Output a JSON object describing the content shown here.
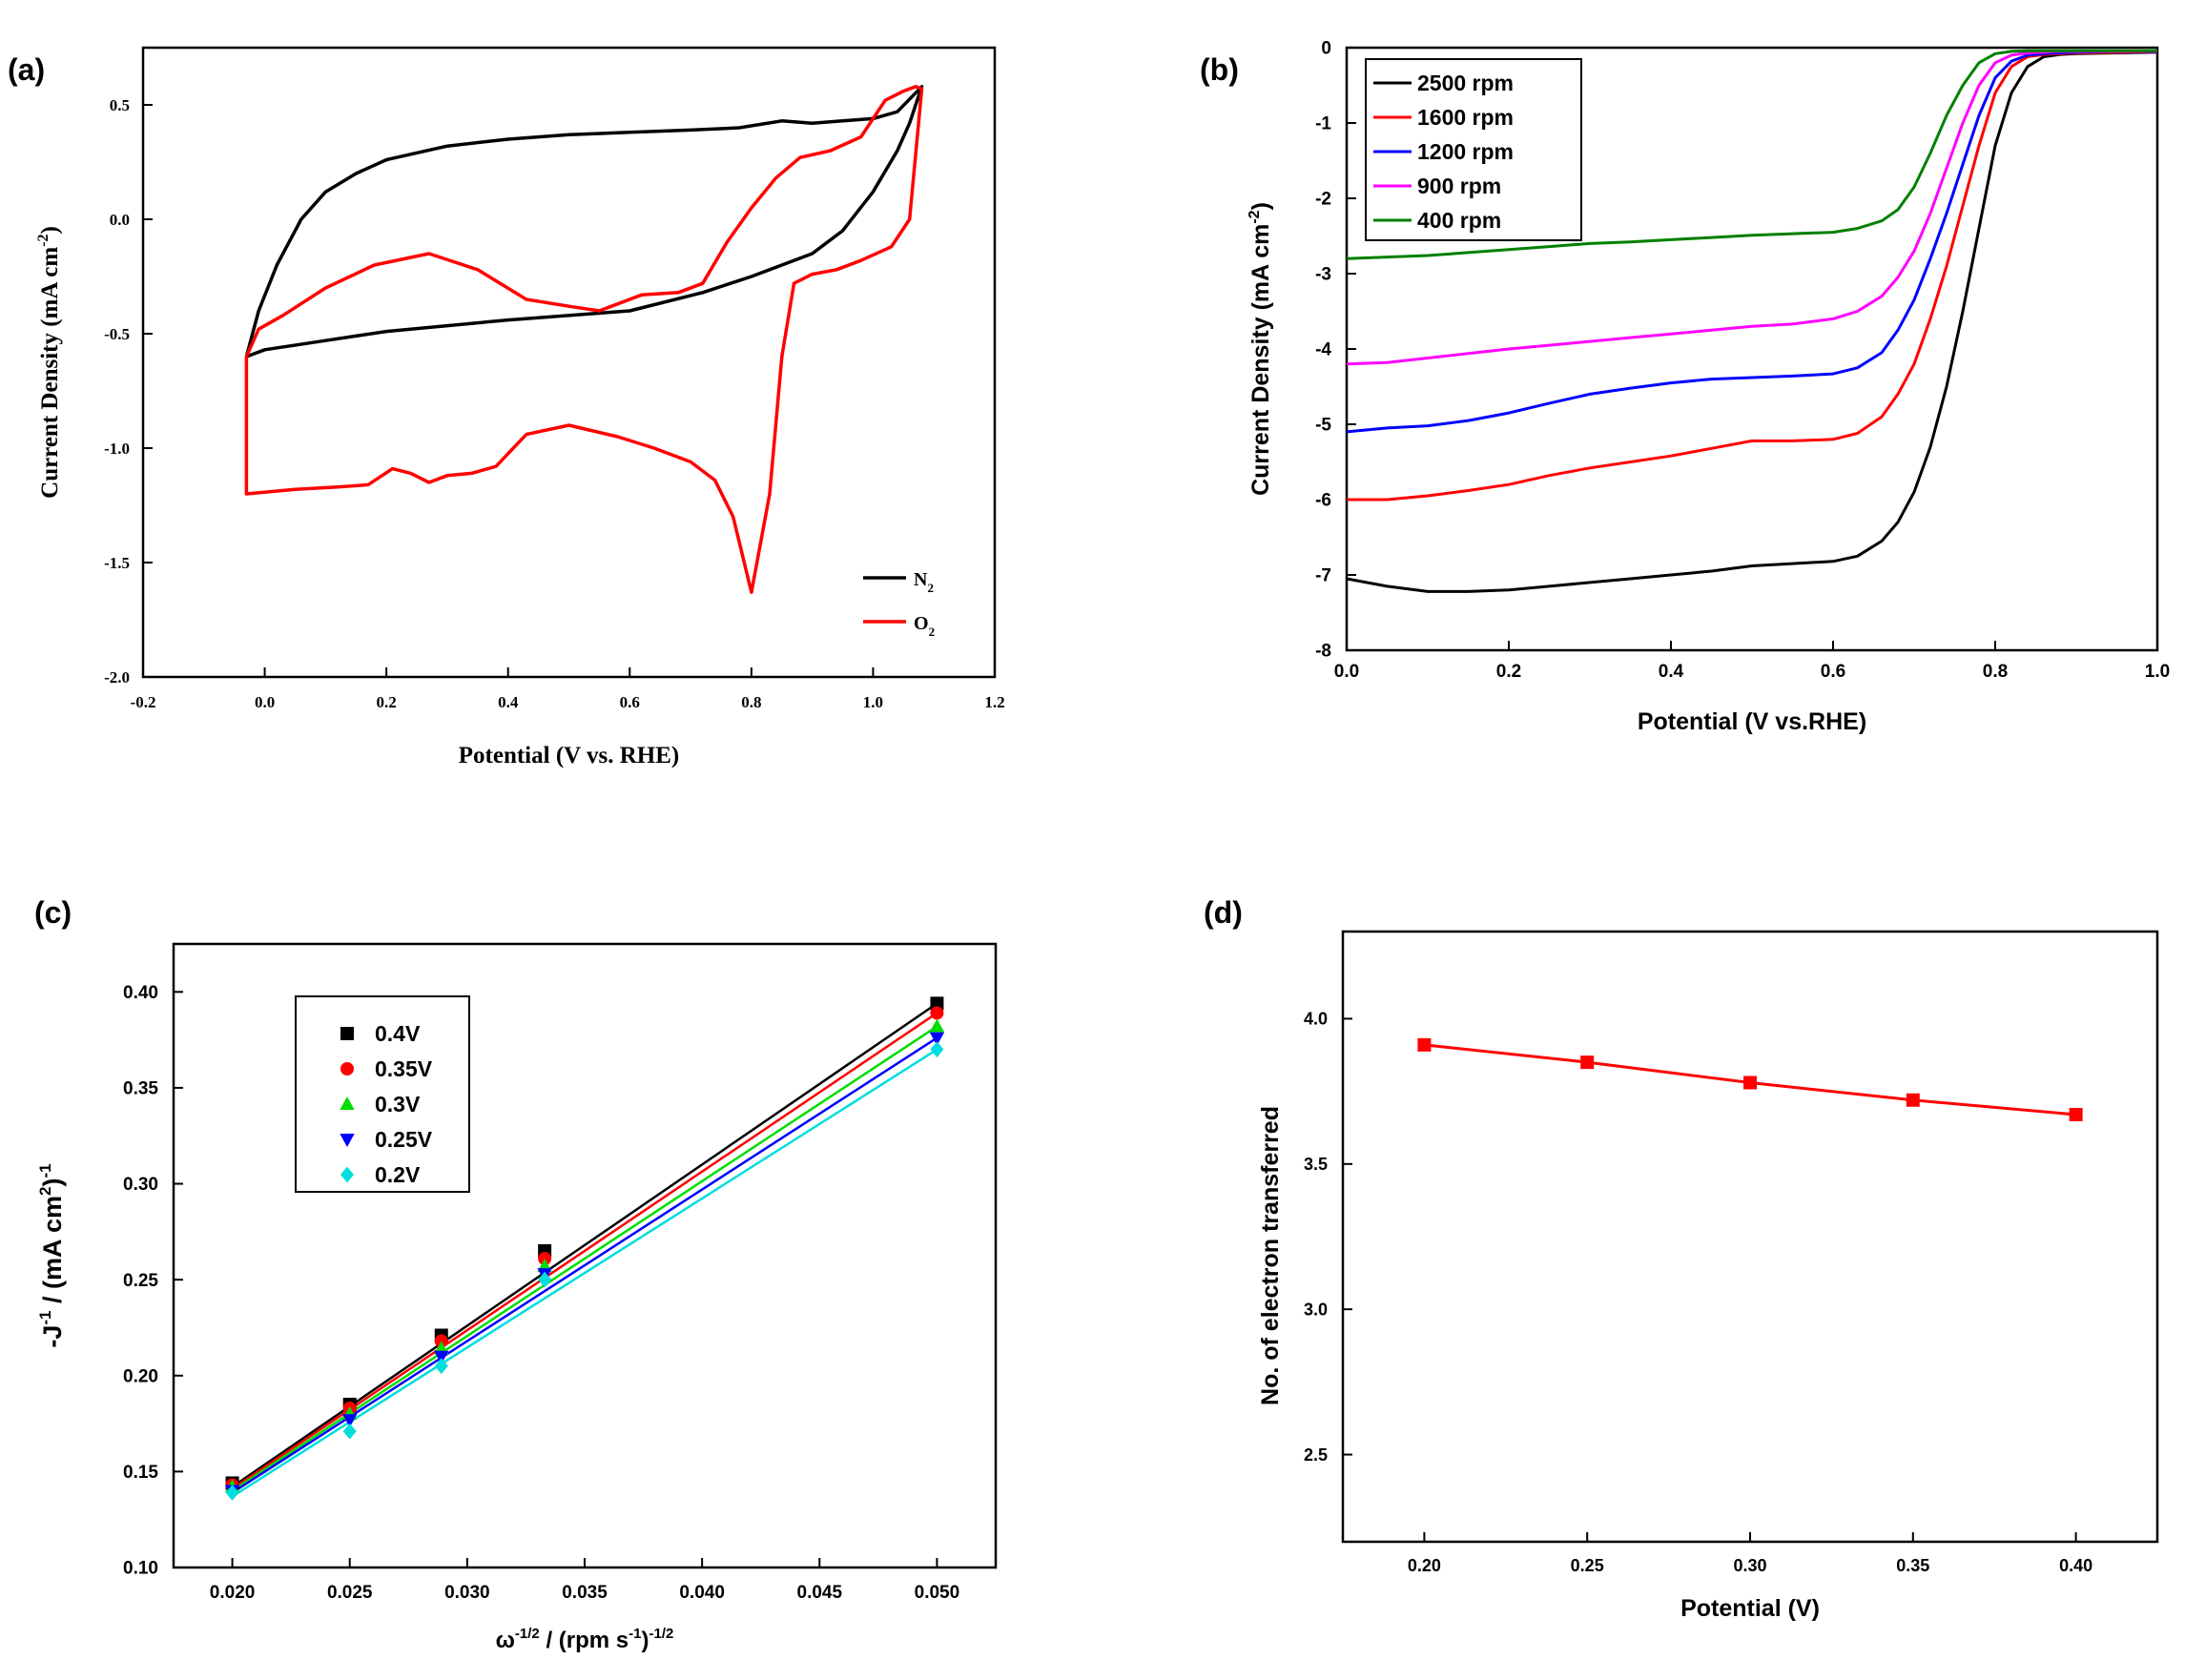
{
  "colors": {
    "black": "#000000",
    "red": "#ff0000",
    "blue": "#0000ff",
    "magenta": "#ff00ff",
    "green": "#008000",
    "lime": "#00dd00",
    "cyan": "#00dddd"
  },
  "chart_data": [
    {
      "id": "a",
      "panel_label": "(a)",
      "type": "line",
      "title": "",
      "xlabel": "Potential (V vs. RHE)",
      "ylabel": "Current Density (mA cm-2)",
      "ylabel_main": "Current Density (mA cm",
      "ylabel_sup": "-2",
      "ylabel_end": ")",
      "xlim": [
        -0.2,
        1.2
      ],
      "ylim": [
        -2.0,
        0.75
      ],
      "xticks": [
        -0.2,
        0.0,
        0.2,
        0.4,
        0.6,
        0.8,
        1.0,
        1.2
      ],
      "xtick_labels": [
        "-0.2",
        "0.0",
        "0.2",
        "0.4",
        "0.6",
        "0.8",
        "1.0",
        "1.2"
      ],
      "yticks": [
        -2.0,
        -1.5,
        -1.0,
        -0.5,
        0.0,
        0.5
      ],
      "ytick_labels": [
        "-2.0",
        "-1.5",
        "-1.0",
        "-0.5",
        "0.0",
        "0.5"
      ],
      "legend_position": "bottom-right",
      "series": [
        {
          "name": "N2",
          "label_main": "N",
          "label_sub": "2",
          "color": "#000000",
          "x": [
            -0.03,
            -0.01,
            0.02,
            0.06,
            0.1,
            0.15,
            0.2,
            0.3,
            0.4,
            0.5,
            0.6,
            0.7,
            0.78,
            0.85,
            0.9,
            0.95,
            1.0,
            1.04,
            1.08,
            1.06,
            1.04,
            1.0,
            0.95,
            0.9,
            0.85,
            0.8,
            0.72,
            0.6,
            0.4,
            0.2,
            0.1,
            0.0,
            -0.03
          ],
          "y": [
            -0.6,
            -0.4,
            -0.2,
            0.0,
            0.12,
            0.2,
            0.26,
            0.32,
            0.35,
            0.37,
            0.38,
            0.39,
            0.4,
            0.43,
            0.42,
            0.43,
            0.44,
            0.47,
            0.58,
            0.42,
            0.3,
            0.12,
            -0.05,
            -0.15,
            -0.2,
            -0.25,
            -0.32,
            -0.4,
            -0.44,
            -0.49,
            -0.53,
            -0.57,
            -0.6
          ]
        },
        {
          "name": "O2",
          "label_main": "O",
          "label_sub": "2",
          "color": "#ff0000",
          "x": [
            -0.03,
            -0.01,
            0.03,
            0.1,
            0.18,
            0.27,
            0.35,
            0.43,
            0.5,
            0.55,
            0.62,
            0.68,
            0.72,
            0.76,
            0.8,
            0.84,
            0.88,
            0.93,
            0.98,
            1.02,
            1.05,
            1.07,
            1.08,
            1.06,
            1.03,
            0.98,
            0.94,
            0.9,
            0.87,
            0.85,
            0.83,
            0.8,
            0.77,
            0.74,
            0.7,
            0.64,
            0.58,
            0.5,
            0.43,
            0.38,
            0.34,
            0.3,
            0.27,
            0.24,
            0.21,
            0.17,
            0.12,
            0.05,
            -0.03,
            -0.03
          ],
          "y": [
            -0.6,
            -0.48,
            -0.42,
            -0.3,
            -0.2,
            -0.15,
            -0.22,
            -0.35,
            -0.38,
            -0.4,
            -0.33,
            -0.32,
            -0.28,
            -0.1,
            0.05,
            0.18,
            0.27,
            0.3,
            0.36,
            0.52,
            0.56,
            0.58,
            0.57,
            0.0,
            -0.12,
            -0.18,
            -0.22,
            -0.24,
            -0.28,
            -0.6,
            -1.2,
            -1.63,
            -1.3,
            -1.14,
            -1.06,
            -1.0,
            -0.95,
            -0.9,
            -0.94,
            -1.08,
            -1.11,
            -1.12,
            -1.15,
            -1.11,
            -1.09,
            -1.16,
            -1.17,
            -1.18,
            -1.2,
            -0.6
          ]
        }
      ]
    },
    {
      "id": "b",
      "panel_label": "(b)",
      "type": "line",
      "title": "",
      "xlabel": "Potential (V vs.RHE)",
      "ylabel": "Current Density (mA cm-2)",
      "ylabel_main": "Current Density (mA cm",
      "ylabel_sup": "-2",
      "ylabel_end": ")",
      "xlim": [
        0.0,
        1.0
      ],
      "ylim": [
        -8,
        0
      ],
      "xticks": [
        0.0,
        0.2,
        0.4,
        0.6,
        0.8,
        1.0
      ],
      "xtick_labels": [
        "0.0",
        "0.2",
        "0.4",
        "0.6",
        "0.8",
        "1.0"
      ],
      "yticks": [
        -8,
        -7,
        -6,
        -5,
        -4,
        -3,
        -2,
        -1,
        0
      ],
      "ytick_labels": [
        "-8",
        "-7",
        "-6",
        "-5",
        "-4",
        "-3",
        "-2",
        "-1",
        "0"
      ],
      "legend_position": "top-left",
      "x": [
        0.0,
        0.05,
        0.1,
        0.15,
        0.2,
        0.25,
        0.3,
        0.35,
        0.4,
        0.45,
        0.5,
        0.55,
        0.6,
        0.63,
        0.66,
        0.68,
        0.7,
        0.72,
        0.74,
        0.76,
        0.78,
        0.8,
        0.82,
        0.84,
        0.86,
        0.88,
        0.9,
        0.95,
        1.0
      ],
      "series": [
        {
          "name": "2500 rpm",
          "color": "#000000",
          "y": [
            -7.05,
            -7.15,
            -7.22,
            -7.22,
            -7.2,
            -7.15,
            -7.1,
            -7.05,
            -7.0,
            -6.95,
            -6.88,
            -6.85,
            -6.82,
            -6.75,
            -6.55,
            -6.3,
            -5.9,
            -5.3,
            -4.5,
            -3.5,
            -2.4,
            -1.3,
            -0.6,
            -0.25,
            -0.12,
            -0.09,
            -0.08,
            -0.07,
            -0.06
          ]
        },
        {
          "name": "1600 rpm",
          "color": "#ff0000",
          "y": [
            -6.0,
            -6.0,
            -5.95,
            -5.88,
            -5.8,
            -5.68,
            -5.58,
            -5.5,
            -5.42,
            -5.32,
            -5.22,
            -5.22,
            -5.2,
            -5.12,
            -4.9,
            -4.6,
            -4.2,
            -3.6,
            -2.9,
            -2.1,
            -1.3,
            -0.6,
            -0.25,
            -0.12,
            -0.09,
            -0.08,
            -0.07,
            -0.06,
            -0.05
          ]
        },
        {
          "name": "1200 rpm",
          "color": "#0000ff",
          "y": [
            -5.1,
            -5.05,
            -5.02,
            -4.95,
            -4.85,
            -4.72,
            -4.6,
            -4.52,
            -4.45,
            -4.4,
            -4.38,
            -4.36,
            -4.33,
            -4.25,
            -4.05,
            -3.75,
            -3.35,
            -2.8,
            -2.2,
            -1.55,
            -0.9,
            -0.4,
            -0.18,
            -0.1,
            -0.08,
            -0.07,
            -0.06,
            -0.05,
            -0.05
          ]
        },
        {
          "name": "900 rpm",
          "color": "#ff00ff",
          "y": [
            -4.2,
            -4.18,
            -4.12,
            -4.06,
            -4.0,
            -3.95,
            -3.9,
            -3.85,
            -3.8,
            -3.75,
            -3.7,
            -3.67,
            -3.6,
            -3.5,
            -3.3,
            -3.05,
            -2.7,
            -2.2,
            -1.6,
            -1.0,
            -0.5,
            -0.2,
            -0.1,
            -0.07,
            -0.06,
            -0.05,
            -0.05,
            -0.05,
            -0.05
          ]
        },
        {
          "name": "400 rpm",
          "color": "#008000",
          "y": [
            -2.8,
            -2.78,
            -2.76,
            -2.72,
            -2.68,
            -2.64,
            -2.6,
            -2.58,
            -2.55,
            -2.52,
            -2.49,
            -2.47,
            -2.45,
            -2.4,
            -2.3,
            -2.15,
            -1.85,
            -1.4,
            -0.9,
            -0.5,
            -0.2,
            -0.08,
            -0.05,
            -0.04,
            -0.04,
            -0.04,
            -0.04,
            -0.04,
            -0.04
          ]
        }
      ]
    },
    {
      "id": "c",
      "panel_label": "(c)",
      "type": "scatter",
      "title": "",
      "xlabel": "ω-1/2 / (rpm s-1)-1/2",
      "xlabel_parts": [
        "ω",
        "-1/2",
        " / (rpm s",
        "-1",
        ")",
        "-1/2"
      ],
      "ylabel": "-J-1 / (mA cm2)-1",
      "ylabel_parts": [
        "-J",
        "-1",
        " / (mA cm",
        "2",
        ")",
        "-1"
      ],
      "xlim": [
        0.0175,
        0.0525
      ],
      "ylim": [
        0.1,
        0.425
      ],
      "xticks": [
        0.02,
        0.025,
        0.03,
        0.035,
        0.04,
        0.045,
        0.05
      ],
      "xtick_labels": [
        "0.020",
        "0.025",
        "0.030",
        "0.035",
        "0.040",
        "0.045",
        "0.050"
      ],
      "yticks": [
        0.1,
        0.15,
        0.2,
        0.25,
        0.3,
        0.35,
        0.4
      ],
      "ytick_labels": [
        "0.10",
        "0.15",
        "0.20",
        "0.25",
        "0.30",
        "0.35",
        "0.40"
      ],
      "legend_position": "top-left",
      "x": [
        0.02,
        0.025,
        0.0289,
        0.0333,
        0.05
      ],
      "series": [
        {
          "name": "0.4V",
          "color": "#000000",
          "marker": "square",
          "values": [
            0.144,
            0.185,
            0.221,
            0.265,
            0.394
          ],
          "fit": [
            0.142,
            0.394
          ]
        },
        {
          "name": "0.35V",
          "color": "#ff0000",
          "marker": "circle",
          "values": [
            0.143,
            0.183,
            0.218,
            0.261,
            0.389
          ],
          "fit": [
            0.141,
            0.389
          ]
        },
        {
          "name": "0.3V",
          "color": "#00dd00",
          "marker": "triangle-up",
          "values": [
            0.142,
            0.18,
            0.214,
            0.257,
            0.382
          ],
          "fit": [
            0.14,
            0.382
          ]
        },
        {
          "name": "0.25V",
          "color": "#0000ff",
          "marker": "triangle-down",
          "values": [
            0.14,
            0.177,
            0.21,
            0.253,
            0.376
          ],
          "fit": [
            0.139,
            0.376
          ]
        },
        {
          "name": "0.2V",
          "color": "#00dddd",
          "marker": "diamond",
          "values": [
            0.139,
            0.171,
            0.205,
            0.25,
            0.37
          ],
          "fit": [
            0.137,
            0.37
          ]
        }
      ]
    },
    {
      "id": "d",
      "panel_label": "(d)",
      "type": "line",
      "title": "",
      "xlabel": "Potential (V)",
      "ylabel": "No. of electron transferred",
      "xlim": [
        0.175,
        0.425
      ],
      "ylim": [
        2.2,
        4.3
      ],
      "xticks": [
        0.2,
        0.25,
        0.3,
        0.35,
        0.4
      ],
      "xtick_labels": [
        "0.20",
        "0.25",
        "0.30",
        "0.35",
        "0.40"
      ],
      "yticks": [
        2.5,
        3.0,
        3.5,
        4.0
      ],
      "ytick_labels": [
        "2.5",
        "3.0",
        "3.5",
        "4.0"
      ],
      "legend_position": "none",
      "series": [
        {
          "name": "n",
          "color": "#ff0000",
          "marker": "square",
          "x": [
            0.2,
            0.25,
            0.3,
            0.35,
            0.4
          ],
          "y": [
            3.91,
            3.85,
            3.78,
            3.72,
            3.67
          ]
        }
      ]
    }
  ]
}
